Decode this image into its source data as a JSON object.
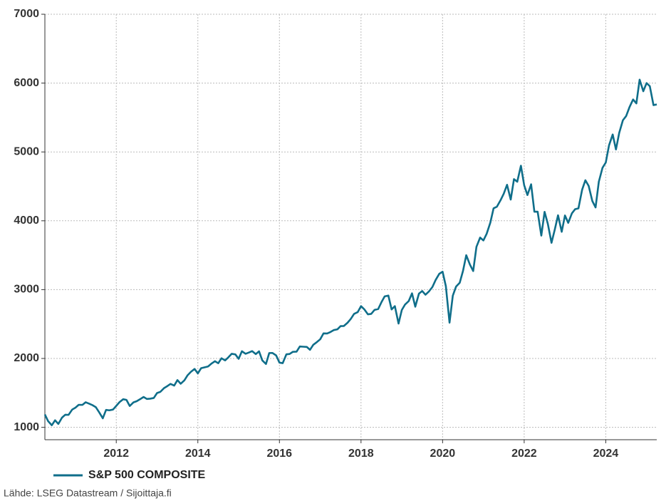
{
  "chart_data": {
    "type": "line",
    "series": [
      {
        "name": "S&P 500 COMPOSITE",
        "color": "#0f6e8a",
        "values": [
          1187,
          1089,
          1030,
          1102,
          1049,
          1141,
          1183,
          1181,
          1258,
          1286,
          1327,
          1326,
          1364,
          1345,
          1321,
          1292,
          1219,
          1131,
          1253,
          1247,
          1258,
          1312,
          1366,
          1408,
          1398,
          1310,
          1362,
          1379,
          1407,
          1441,
          1412,
          1416,
          1426,
          1498,
          1515,
          1569,
          1598,
          1631,
          1606,
          1686,
          1633,
          1682,
          1757,
          1806,
          1848,
          1783,
          1859,
          1872,
          1884,
          1924,
          1960,
          1931,
          2003,
          1972,
          2018,
          2068,
          2059,
          1995,
          2105,
          2068,
          2086,
          2107,
          2063,
          2104,
          1972,
          1920,
          2079,
          2080,
          2044,
          1940,
          1932,
          2060,
          2065,
          2097,
          2099,
          2174,
          2171,
          2168,
          2126,
          2199,
          2239,
          2279,
          2364,
          2363,
          2384,
          2412,
          2423,
          2470,
          2472,
          2519,
          2575,
          2648,
          2674,
          2760,
          2714,
          2641,
          2648,
          2705,
          2718,
          2816,
          2902,
          2914,
          2712,
          2760,
          2507,
          2704,
          2784,
          2834,
          2946,
          2752,
          2942,
          2980,
          2926,
          2977,
          3038,
          3141,
          3231,
          3260,
          3050,
          2520,
          2912,
          3044,
          3100,
          3271,
          3500,
          3363,
          3270,
          3622,
          3756,
          3714,
          3811,
          3973,
          4181,
          4204,
          4298,
          4395,
          4523,
          4308,
          4605,
          4567,
          4800,
          4516,
          4374,
          4530,
          4132,
          4132,
          3785,
          4130,
          3955,
          3680,
          3872,
          4080,
          3840,
          4077,
          3970,
          4109,
          4169,
          4180,
          4450,
          4589,
          4508,
          4288,
          4194,
          4568,
          4770,
          4846,
          5096,
          5254,
          5036,
          5278,
          5460,
          5522,
          5648,
          5762,
          5705,
          6050,
          5882,
          6000,
          5955,
          5680,
          5690
        ]
      }
    ],
    "x": [
      2010.25,
      2010.33,
      2010.42,
      2010.5,
      2010.58,
      2010.67,
      2010.75,
      2010.83,
      2010.92,
      2011,
      2011.08,
      2011.17,
      2011.25,
      2011.33,
      2011.42,
      2011.5,
      2011.58,
      2011.67,
      2011.75,
      2011.83,
      2011.92,
      2012,
      2012.08,
      2012.17,
      2012.25,
      2012.33,
      2012.42,
      2012.5,
      2012.58,
      2012.67,
      2012.75,
      2012.83,
      2012.92,
      2013,
      2013.08,
      2013.17,
      2013.25,
      2013.33,
      2013.42,
      2013.5,
      2013.58,
      2013.67,
      2013.75,
      2013.83,
      2013.92,
      2014,
      2014.08,
      2014.17,
      2014.25,
      2014.33,
      2014.42,
      2014.5,
      2014.58,
      2014.67,
      2014.75,
      2014.83,
      2014.92,
      2015,
      2015.08,
      2015.17,
      2015.25,
      2015.33,
      2015.42,
      2015.5,
      2015.58,
      2015.67,
      2015.75,
      2015.83,
      2015.92,
      2016,
      2016.08,
      2016.17,
      2016.25,
      2016.33,
      2016.42,
      2016.5,
      2016.58,
      2016.67,
      2016.75,
      2016.83,
      2016.92,
      2017,
      2017.08,
      2017.17,
      2017.25,
      2017.33,
      2017.42,
      2017.5,
      2017.58,
      2017.67,
      2017.75,
      2017.83,
      2017.92,
      2018,
      2018.08,
      2018.17,
      2018.25,
      2018.33,
      2018.42,
      2018.5,
      2018.58,
      2018.67,
      2018.75,
      2018.83,
      2018.92,
      2019,
      2019.08,
      2019.17,
      2019.25,
      2019.33,
      2019.42,
      2019.5,
      2019.58,
      2019.67,
      2019.75,
      2019.83,
      2019.92,
      2020,
      2020.08,
      2020.17,
      2020.25,
      2020.33,
      2020.42,
      2020.5,
      2020.58,
      2020.67,
      2020.75,
      2020.83,
      2020.92,
      2021,
      2021.08,
      2021.17,
      2021.25,
      2021.33,
      2021.42,
      2021.5,
      2021.58,
      2021.67,
      2021.75,
      2021.83,
      2021.92,
      2022,
      2022.08,
      2022.17,
      2022.25,
      2022.33,
      2022.42,
      2022.5,
      2022.58,
      2022.67,
      2022.75,
      2022.83,
      2022.92,
      2023,
      2023.08,
      2023.17,
      2023.25,
      2023.33,
      2023.42,
      2023.5,
      2023.58,
      2023.67,
      2023.75,
      2023.83,
      2023.92,
      2024,
      2024.08,
      2024.17,
      2024.25,
      2024.33,
      2024.42,
      2024.5,
      2024.58,
      2024.67,
      2024.75,
      2024.83,
      2024.92,
      2025,
      2025.08,
      2025.17,
      2025.25
    ],
    "xlim": [
      2010.25,
      2025.25
    ],
    "xticks": [
      2012,
      2014,
      2016,
      2018,
      2020,
      2022,
      2024
    ],
    "ylim": [
      820,
      7000
    ],
    "yticks": [
      1000,
      2000,
      3000,
      4000,
      5000,
      6000,
      7000
    ],
    "grid": true,
    "legend": "bottom-left",
    "source": "Lähde: LSEG Datastream / Sijoittaja.fi"
  }
}
